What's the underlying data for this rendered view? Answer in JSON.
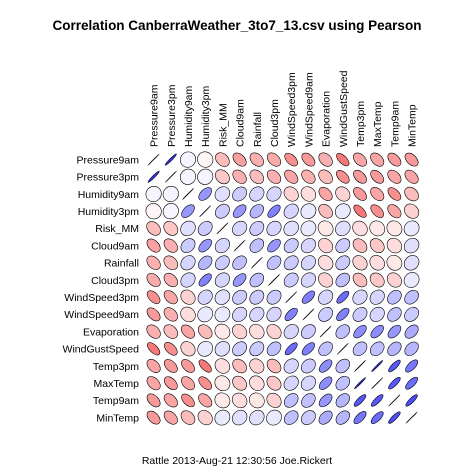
{
  "chart_data": {
    "type": "heatmap",
    "title": "Correlation CanberraWeather_3to7_13.csv using Pearson",
    "variables": [
      "Pressure9am",
      "Pressure3pm",
      "Humidity9am",
      "Humidity3pm",
      "Risk_MM",
      "Cloud9am",
      "Rainfall",
      "Cloud3pm",
      "WindSpeed3pm",
      "WindSpeed9am",
      "Evaporation",
      "WindGustSpeed",
      "Temp3pm",
      "MaxTemp",
      "Temp9am",
      "MinTemp"
    ],
    "matrix": [
      [
        1.0,
        0.96,
        0.05,
        -0.04,
        -0.3,
        -0.42,
        -0.35,
        -0.38,
        -0.5,
        -0.45,
        -0.35,
        -0.6,
        -0.4,
        -0.4,
        -0.45,
        -0.45
      ],
      [
        0.96,
        1.0,
        0.05,
        0.05,
        -0.25,
        -0.35,
        -0.3,
        -0.35,
        -0.4,
        -0.35,
        -0.3,
        -0.5,
        -0.45,
        -0.45,
        -0.4,
        -0.4
      ],
      [
        0.05,
        0.05,
        1.0,
        0.5,
        0.15,
        0.25,
        0.2,
        0.2,
        -0.2,
        -0.15,
        -0.4,
        -0.2,
        -0.45,
        -0.4,
        -0.5,
        -0.3
      ],
      [
        -0.04,
        0.05,
        0.5,
        1.0,
        0.25,
        0.5,
        0.35,
        0.6,
        0.2,
        0.1,
        -0.3,
        0.1,
        -0.6,
        -0.5,
        -0.4,
        -0.2
      ],
      [
        -0.3,
        -0.25,
        0.15,
        0.25,
        1.0,
        0.2,
        0.25,
        0.2,
        0.15,
        0.1,
        -0.1,
        0.15,
        -0.15,
        -0.1,
        -0.1,
        0.1
      ],
      [
        -0.42,
        -0.35,
        0.25,
        0.5,
        0.2,
        1.0,
        0.3,
        0.5,
        0.25,
        0.2,
        -0.2,
        0.25,
        -0.3,
        -0.25,
        -0.15,
        0.15
      ],
      [
        -0.35,
        -0.3,
        0.2,
        0.35,
        0.25,
        0.3,
        1.0,
        0.3,
        0.25,
        0.2,
        -0.15,
        0.25,
        -0.2,
        -0.15,
        -0.1,
        0.15
      ],
      [
        -0.38,
        -0.35,
        0.2,
        0.6,
        0.2,
        0.5,
        0.3,
        1.0,
        0.25,
        0.2,
        -0.2,
        0.3,
        -0.3,
        -0.25,
        -0.2,
        0.1
      ],
      [
        -0.5,
        -0.4,
        -0.2,
        0.2,
        0.15,
        0.25,
        0.25,
        0.25,
        1.0,
        0.6,
        0.2,
        0.7,
        0.2,
        0.2,
        0.3,
        0.3
      ],
      [
        -0.45,
        -0.35,
        -0.15,
        0.1,
        0.1,
        0.2,
        0.2,
        0.2,
        0.6,
        1.0,
        0.25,
        0.6,
        0.25,
        0.2,
        0.3,
        0.25
      ],
      [
        -0.35,
        -0.3,
        -0.4,
        -0.3,
        -0.1,
        -0.2,
        -0.15,
        -0.2,
        0.2,
        0.25,
        1.0,
        0.3,
        0.55,
        0.55,
        0.5,
        0.4
      ],
      [
        -0.6,
        -0.5,
        -0.2,
        0.1,
        0.15,
        0.25,
        0.25,
        0.3,
        0.7,
        0.6,
        0.3,
        1.0,
        0.3,
        0.3,
        0.35,
        0.35
      ],
      [
        -0.4,
        -0.45,
        -0.45,
        -0.6,
        -0.15,
        -0.3,
        -0.2,
        -0.3,
        0.2,
        0.25,
        0.55,
        0.3,
        1.0,
        0.98,
        0.8,
        0.65
      ],
      [
        -0.4,
        -0.45,
        -0.4,
        -0.5,
        -0.1,
        -0.25,
        -0.15,
        -0.25,
        0.2,
        0.2,
        0.55,
        0.3,
        0.98,
        1.0,
        0.8,
        0.7
      ],
      [
        -0.45,
        -0.4,
        -0.5,
        -0.4,
        -0.1,
        -0.15,
        -0.1,
        -0.2,
        0.3,
        0.3,
        0.5,
        0.35,
        0.8,
        0.8,
        1.0,
        0.85
      ],
      [
        -0.45,
        -0.4,
        -0.3,
        -0.2,
        0.1,
        0.15,
        0.15,
        0.1,
        0.3,
        0.25,
        0.4,
        0.35,
        0.65,
        0.7,
        0.85,
        1.0
      ]
    ],
    "colors": {
      "positive": "#3333ff",
      "negative": "#ff2020",
      "outline": "#000000"
    },
    "footer": "Rattle 2013-Aug-21 12:30:56 Joe.Rickert"
  }
}
